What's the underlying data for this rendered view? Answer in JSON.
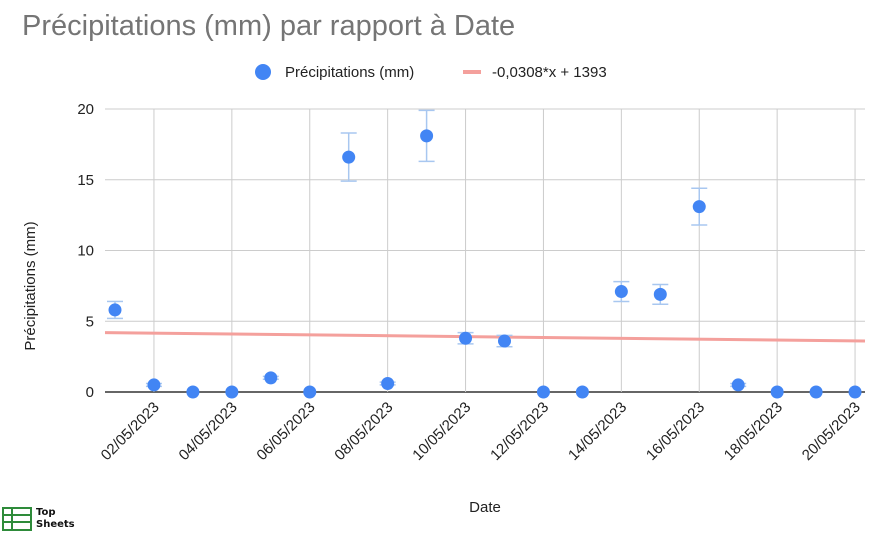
{
  "chart_data": {
    "type": "scatter",
    "title": "Précipitations (mm) par rapport à Date",
    "xlabel": "Date",
    "ylabel": "Précipitations (mm)",
    "ylim": [
      0,
      20
    ],
    "y_ticks": [
      "0",
      "5",
      "10",
      "15",
      "20"
    ],
    "x_tick_labels": [
      "02/05/2023",
      "04/05/2023",
      "06/05/2023",
      "08/05/2023",
      "10/05/2023",
      "12/05/2023",
      "14/05/2023",
      "16/05/2023",
      "18/05/2023",
      "20/05/2023"
    ],
    "x_ticks": [
      "2023-05-02",
      "2023-05-04",
      "2023-05-06",
      "2023-05-08",
      "2023-05-10",
      "2023-05-12",
      "2023-05-14",
      "2023-05-16",
      "2023-05-18",
      "2023-05-20"
    ],
    "xlim": [
      "2023-05-01",
      "2023-05-20"
    ],
    "grid": true,
    "legend_position": "top",
    "series": [
      {
        "name": "Précipitations (mm)",
        "color": "#4285f4",
        "error_bar_color": "#a8c7f0",
        "points": [
          {
            "x": "2023-05-01",
            "y": 5.8,
            "err": 0.6
          },
          {
            "x": "2023-05-02",
            "y": 0.5,
            "err": 0.1
          },
          {
            "x": "2023-05-03",
            "y": 0,
            "err": 0
          },
          {
            "x": "2023-05-04",
            "y": 0,
            "err": 0
          },
          {
            "x": "2023-05-05",
            "y": 1.0,
            "err": 0.1
          },
          {
            "x": "2023-05-06",
            "y": 0,
            "err": 0
          },
          {
            "x": "2023-05-07",
            "y": 16.6,
            "err": 1.7
          },
          {
            "x": "2023-05-08",
            "y": 0.6,
            "err": 0.1
          },
          {
            "x": "2023-05-09",
            "y": 18.1,
            "err": 1.8
          },
          {
            "x": "2023-05-10",
            "y": 3.8,
            "err": 0.4
          },
          {
            "x": "2023-05-11",
            "y": 3.6,
            "err": 0.4
          },
          {
            "x": "2023-05-12",
            "y": 0,
            "err": 0
          },
          {
            "x": "2023-05-13",
            "y": 0,
            "err": 0
          },
          {
            "x": "2023-05-14",
            "y": 7.1,
            "err": 0.7
          },
          {
            "x": "2023-05-15",
            "y": 6.9,
            "err": 0.7
          },
          {
            "x": "2023-05-16",
            "y": 13.1,
            "err": 1.3
          },
          {
            "x": "2023-05-17",
            "y": 0.5,
            "err": 0.1
          },
          {
            "x": "2023-05-18",
            "y": 0,
            "err": 0
          },
          {
            "x": "2023-05-19",
            "y": 0,
            "err": 0
          },
          {
            "x": "2023-05-20",
            "y": 0,
            "err": 0
          }
        ]
      }
    ],
    "trendline": {
      "name": "-0,0308*x + 1393",
      "color": "#f4a09c",
      "y_at_start": 4.2,
      "y_at_end": 3.6
    }
  },
  "logo": {
    "line1": "Top",
    "line2": "Sheets"
  }
}
